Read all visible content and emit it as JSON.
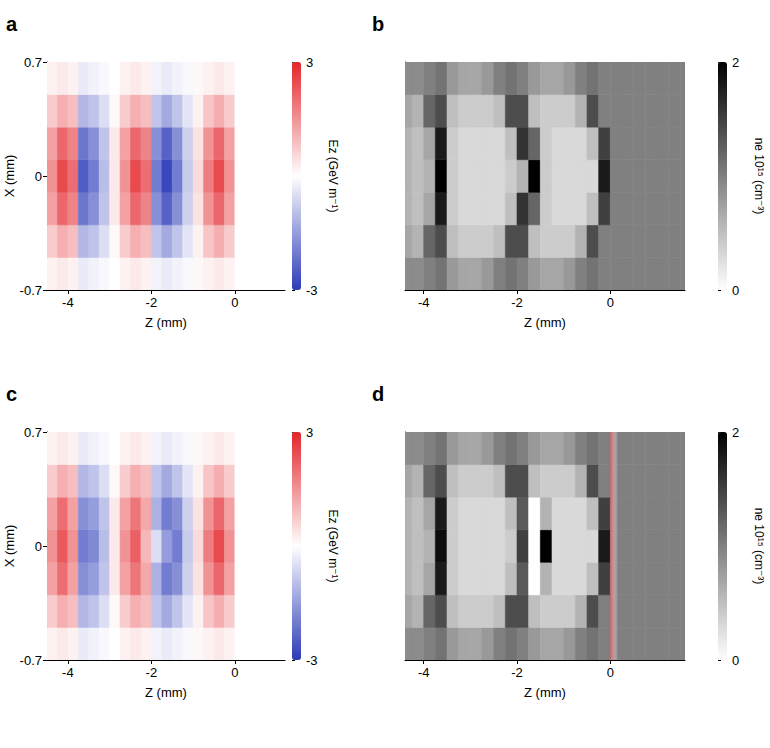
{
  "chart_data": [
    {
      "type": "heatmap",
      "title": "a",
      "x_label": "Z (mm)",
      "y_label": "X (mm)",
      "xlim": [
        -4.5,
        1.2
      ],
      "xticks": [
        -4,
        -2,
        0
      ],
      "ylim": [
        -0.7,
        0.7
      ],
      "yticks": [
        -0.7,
        0,
        0.7
      ],
      "z_edges": [
        -4.5,
        -4.25,
        -4,
        -3.75,
        -3.5,
        -3.25,
        -3,
        -2.75,
        -2.5,
        -2.25,
        -2,
        -1.75,
        -1.5,
        -1.25,
        -1,
        -0.75,
        -0.5,
        -0.25,
        0,
        0.25,
        0.5,
        0.75,
        1,
        1.25,
        1.5,
        1.75
      ],
      "x_edges": [
        -0.7,
        -0.5,
        -0.3,
        -0.1,
        0.1,
        0.3,
        0.5,
        0.7
      ],
      "cells": [
        [
          0.2,
          0.3,
          0.2,
          -0.3,
          -0.2,
          -0.1,
          0,
          0.2,
          0.3,
          0.2,
          -0.2,
          -0.3,
          -0.2,
          -0.1,
          0.1,
          0.2,
          0.3,
          0.2,
          0,
          0,
          0,
          0,
          0,
          0,
          0
        ],
        [
          0.7,
          1.1,
          0.9,
          -1.1,
          -0.9,
          -0.5,
          0.1,
          0.7,
          1.1,
          0.9,
          -0.9,
          -1.3,
          -0.9,
          -0.4,
          0.2,
          0.8,
          1.1,
          0.7,
          0,
          0,
          0,
          0,
          0,
          0,
          0
        ],
        [
          1.3,
          2.1,
          1.7,
          -2.1,
          -1.7,
          -0.9,
          0.3,
          1.3,
          2.1,
          1.7,
          -1.7,
          -2.4,
          -1.7,
          -0.7,
          0.4,
          1.5,
          2.1,
          1.3,
          0,
          0,
          0,
          0,
          0,
          0,
          0
        ],
        [
          1.5,
          2.5,
          2.0,
          -2.5,
          -2.0,
          -1.0,
          0.3,
          1.5,
          2.5,
          2.0,
          -2.0,
          -2.8,
          -2.0,
          -0.8,
          0.5,
          1.8,
          2.5,
          1.5,
          0,
          0,
          0,
          0,
          0,
          0,
          0
        ],
        [
          1.3,
          2.1,
          1.7,
          -2.1,
          -1.7,
          -0.9,
          0.3,
          1.3,
          2.1,
          1.7,
          -1.7,
          -2.4,
          -1.7,
          -0.7,
          0.4,
          1.5,
          2.1,
          1.3,
          0,
          0,
          0,
          0,
          0,
          0,
          0
        ],
        [
          0.7,
          1.1,
          0.9,
          -1.1,
          -0.9,
          -0.5,
          0.1,
          0.7,
          1.1,
          0.9,
          -0.9,
          -1.3,
          -0.9,
          -0.4,
          0.2,
          0.8,
          1.1,
          0.7,
          0,
          0,
          0,
          0,
          0,
          0,
          0
        ],
        [
          0.2,
          0.3,
          0.2,
          -0.3,
          -0.2,
          -0.1,
          0,
          0.2,
          0.3,
          0.2,
          -0.2,
          -0.3,
          -0.2,
          -0.1,
          0.1,
          0.2,
          0.3,
          0.2,
          0,
          0,
          0,
          0,
          0,
          0,
          0
        ]
      ],
      "colorbar": {
        "label": "Ez (GeV m⁻¹)",
        "lim": [
          -3,
          3
        ],
        "ticks": [
          -3,
          3
        ]
      }
    },
    {
      "type": "heatmap",
      "title": "b",
      "x_label": "Z (mm)",
      "xlim": [
        -4.4,
        1.6
      ],
      "xticks": [
        -4,
        -2,
        0
      ],
      "ylim": [
        -0.7,
        0.7
      ],
      "tick_labels": "x",
      "z_edges": [
        -4.5,
        -4.25,
        -4,
        -3.75,
        -3.5,
        -3.25,
        -3,
        -2.75,
        -2.5,
        -2.25,
        -2,
        -1.75,
        -1.5,
        -1.25,
        -1,
        -0.75,
        -0.5,
        -0.25,
        0,
        0.25,
        0.5,
        0.75,
        1,
        1.25,
        1.5,
        1.75
      ],
      "x_edges": [
        -0.7,
        -0.5,
        -0.3,
        -0.1,
        0.1,
        0.3,
        0.5,
        0.7
      ],
      "cells": [
        [
          0.9,
          0.9,
          1.0,
          1.1,
          0.8,
          0.7,
          0.7,
          0.8,
          1.0,
          1.1,
          1.0,
          0.8,
          0.7,
          0.7,
          0.8,
          1.0,
          1.1,
          1.0,
          1.0,
          1.0,
          1.0,
          1.0,
          1.0,
          1.0,
          1.0
        ],
        [
          0.7,
          0.6,
          1.2,
          1.4,
          0.5,
          0.4,
          0.4,
          0.4,
          0.5,
          1.4,
          1.4,
          0.5,
          0.4,
          0.4,
          0.4,
          0.6,
          1.4,
          1.0,
          1.0,
          1.0,
          1.0,
          1.0,
          1.0,
          1.0,
          1.0
        ],
        [
          0.6,
          0.5,
          0.7,
          1.8,
          0.4,
          0.3,
          0.3,
          0.3,
          0.3,
          0.5,
          1.6,
          1.2,
          0.4,
          0.3,
          0.3,
          0.3,
          0.5,
          1.5,
          1.0,
          1.0,
          1.0,
          1.0,
          1.0,
          1.0,
          1.0
        ],
        [
          0.6,
          0.5,
          0.6,
          2.0,
          0.4,
          0.3,
          0.3,
          0.3,
          0.3,
          0.4,
          0.6,
          2.0,
          0.4,
          0.3,
          0.3,
          0.3,
          0.3,
          1.8,
          1.0,
          1.0,
          1.0,
          1.0,
          1.0,
          1.0,
          1.0
        ],
        [
          0.6,
          0.5,
          0.7,
          1.8,
          0.4,
          0.3,
          0.3,
          0.3,
          0.3,
          0.5,
          1.6,
          1.2,
          0.4,
          0.3,
          0.3,
          0.3,
          0.5,
          1.5,
          1.0,
          1.0,
          1.0,
          1.0,
          1.0,
          1.0,
          1.0
        ],
        [
          0.7,
          0.6,
          1.2,
          1.4,
          0.5,
          0.4,
          0.4,
          0.4,
          0.5,
          1.4,
          1.4,
          0.5,
          0.4,
          0.4,
          0.4,
          0.6,
          1.4,
          1.0,
          1.0,
          1.0,
          1.0,
          1.0,
          1.0,
          1.0,
          1.0
        ],
        [
          0.9,
          0.9,
          1.0,
          1.1,
          0.8,
          0.7,
          0.7,
          0.8,
          1.0,
          1.1,
          1.0,
          0.8,
          0.7,
          0.7,
          0.8,
          1.0,
          1.1,
          1.0,
          1.0,
          1.0,
          1.0,
          1.0,
          1.0,
          1.0,
          1.0
        ]
      ],
      "colorbar": {
        "label": "ne 10¹⁵ (cm⁻³)",
        "lim": [
          0,
          2
        ],
        "ticks": [
          0,
          2
        ]
      }
    },
    {
      "type": "heatmap",
      "title": "c",
      "x_label": "Z (mm)",
      "y_label": "X (mm)",
      "xlim": [
        -4.5,
        1.2
      ],
      "xticks": [
        -4,
        -2,
        0
      ],
      "ylim": [
        -0.7,
        0.7
      ],
      "yticks": [
        -0.7,
        0,
        0.7
      ],
      "z_edges": [
        -4.5,
        -4.25,
        -4,
        -3.75,
        -3.5,
        -3.25,
        -3,
        -2.75,
        -2.5,
        -2.25,
        -2,
        -1.75,
        -1.5,
        -1.25,
        -1,
        -0.75,
        -0.5,
        -0.25,
        0,
        0.25,
        0.5,
        0.75,
        1,
        1.25,
        1.5,
        1.75
      ],
      "x_edges": [
        -0.7,
        -0.5,
        -0.3,
        -0.1,
        0.1,
        0.3,
        0.5,
        0.7
      ],
      "cells": [
        [
          0.2,
          0.3,
          0.2,
          -0.3,
          -0.2,
          -0.1,
          0,
          0.2,
          0.3,
          0.2,
          -0.2,
          -0.3,
          -0.2,
          -0.1,
          0.1,
          0.2,
          0.3,
          0.2,
          0,
          0,
          0,
          0,
          0,
          0,
          0
        ],
        [
          0.7,
          1.1,
          0.9,
          -1.1,
          -0.9,
          -0.5,
          0.1,
          0.7,
          1.1,
          0.9,
          -0.9,
          -1.3,
          -0.9,
          -0.4,
          0.2,
          0.8,
          1.1,
          0.7,
          0,
          0,
          0,
          0,
          0,
          0,
          0
        ],
        [
          1.3,
          2.0,
          1.3,
          -1.7,
          -1.5,
          -0.9,
          0.3,
          1.3,
          1.9,
          1.2,
          -1.2,
          -2.0,
          -1.7,
          -0.7,
          0.4,
          1.5,
          2.1,
          1.3,
          0,
          0,
          0,
          0,
          0,
          0,
          0
        ],
        [
          1.5,
          2.3,
          1.5,
          -2.0,
          -1.8,
          -1.0,
          0.3,
          1.5,
          2.2,
          1.0,
          -0.5,
          -1.5,
          -2.0,
          -0.8,
          0.5,
          1.8,
          2.5,
          1.5,
          0,
          0,
          0,
          0,
          0,
          0,
          0
        ],
        [
          1.3,
          2.0,
          1.3,
          -1.7,
          -1.5,
          -0.9,
          0.3,
          1.3,
          1.9,
          1.2,
          -1.2,
          -2.0,
          -1.7,
          -0.7,
          0.4,
          1.5,
          2.1,
          1.3,
          0,
          0,
          0,
          0,
          0,
          0,
          0
        ],
        [
          0.7,
          1.1,
          0.9,
          -1.1,
          -0.9,
          -0.5,
          0.1,
          0.7,
          1.1,
          0.9,
          -0.9,
          -1.3,
          -0.9,
          -0.4,
          0.2,
          0.8,
          1.1,
          0.7,
          0,
          0,
          0,
          0,
          0,
          0,
          0
        ],
        [
          0.2,
          0.3,
          0.2,
          -0.3,
          -0.2,
          -0.1,
          0,
          0.2,
          0.3,
          0.2,
          -0.2,
          -0.3,
          -0.2,
          -0.1,
          0.1,
          0.2,
          0.3,
          0.2,
          0,
          0,
          0,
          0,
          0,
          0,
          0
        ]
      ],
      "colorbar": {
        "label": "Ez (GeV m⁻¹)",
        "lim": [
          -3,
          3
        ],
        "ticks": [
          -3,
          3
        ]
      }
    },
    {
      "type": "heatmap",
      "title": "d",
      "x_label": "Z (mm)",
      "xlim": [
        -4.4,
        1.6
      ],
      "xticks": [
        -4,
        -2,
        0
      ],
      "ylim": [
        -0.7,
        0.7
      ],
      "tick_labels": "x",
      "z_edges": [
        -4.5,
        -4.25,
        -4,
        -3.75,
        -3.5,
        -3.25,
        -3,
        -2.75,
        -2.5,
        -2.25,
        -2,
        -1.75,
        -1.5,
        -1.25,
        -1,
        -0.75,
        -0.5,
        -0.25,
        0,
        0.25,
        0.5,
        0.75,
        1,
        1.25,
        1.5,
        1.75
      ],
      "x_edges": [
        -0.7,
        -0.5,
        -0.3,
        -0.1,
        0.1,
        0.3,
        0.5,
        0.7
      ],
      "cells": [
        [
          0.9,
          0.9,
          1.0,
          1.1,
          0.8,
          0.7,
          0.7,
          0.8,
          1.0,
          1.1,
          1.0,
          0.8,
          0.7,
          0.7,
          0.8,
          1.0,
          1.1,
          1.0,
          1.0,
          1.0,
          1.0,
          1.0,
          1.0,
          1.0,
          1.0
        ],
        [
          0.7,
          0.6,
          1.2,
          1.4,
          0.5,
          0.4,
          0.4,
          0.4,
          0.5,
          1.4,
          1.4,
          0.5,
          0.4,
          0.4,
          0.4,
          0.6,
          1.4,
          1.0,
          1.0,
          1.0,
          1.0,
          1.0,
          1.0,
          1.0,
          1.0
        ],
        [
          0.6,
          0.5,
          0.7,
          1.8,
          0.4,
          0.3,
          0.3,
          0.3,
          0.3,
          0.5,
          1.3,
          0.0,
          0.6,
          0.3,
          0.3,
          0.3,
          0.5,
          1.5,
          1.0,
          1.0,
          1.0,
          1.0,
          1.0,
          1.0,
          1.0
        ],
        [
          0.6,
          0.5,
          0.6,
          1.9,
          0.4,
          0.3,
          0.3,
          0.3,
          0.3,
          0.4,
          1.5,
          0.0,
          2.0,
          0.3,
          0.3,
          0.3,
          0.3,
          1.8,
          1.0,
          1.0,
          1.0,
          1.0,
          1.0,
          1.0,
          1.0
        ],
        [
          0.6,
          0.5,
          0.7,
          1.8,
          0.4,
          0.3,
          0.3,
          0.3,
          0.3,
          0.5,
          1.3,
          0.0,
          0.6,
          0.3,
          0.3,
          0.3,
          0.5,
          1.5,
          1.0,
          1.0,
          1.0,
          1.0,
          1.0,
          1.0,
          1.0
        ],
        [
          0.7,
          0.6,
          1.2,
          1.4,
          0.5,
          0.4,
          0.4,
          0.4,
          0.5,
          1.4,
          1.4,
          0.5,
          0.4,
          0.4,
          0.4,
          0.6,
          1.4,
          1.0,
          1.0,
          1.0,
          1.0,
          1.0,
          1.0,
          1.0,
          1.0
        ],
        [
          0.9,
          0.9,
          1.0,
          1.1,
          0.8,
          0.7,
          0.7,
          0.8,
          1.0,
          1.1,
          1.0,
          0.8,
          0.7,
          0.7,
          0.8,
          1.0,
          1.1,
          1.0,
          1.0,
          1.0,
          1.0,
          1.0,
          1.0,
          1.0,
          1.0
        ]
      ],
      "band": {
        "zlim": [
          0,
          0.15
        ],
        "color": "#e05a5e"
      },
      "colorbar": {
        "label": "ne 10¹⁵ (cm⁻³)",
        "lim": [
          0,
          2
        ],
        "ticks": [
          0,
          2
        ]
      }
    }
  ]
}
